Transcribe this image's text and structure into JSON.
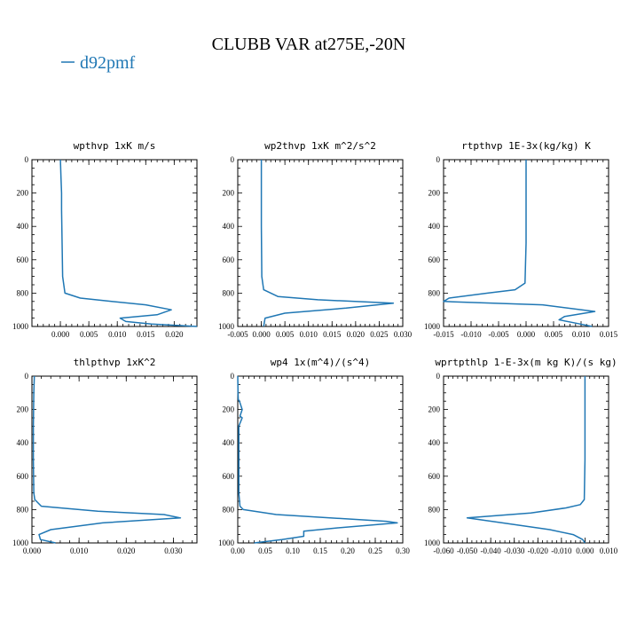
{
  "figure": {
    "title": "CLUBB VAR at275E,-20N",
    "legend": {
      "name": "d92pmf",
      "color": "#1f77b4",
      "placement": "top-left"
    }
  },
  "chart_data": [
    {
      "type": "line",
      "title": "wpthvp  1xK m/s",
      "xlim": [
        -0.005,
        0.024
      ],
      "xticks": [
        "0.000",
        "0.005",
        "0.010",
        "0.015",
        "0.020"
      ],
      "xtick_values": [
        0,
        0.005,
        0.01,
        0.015,
        0.02
      ],
      "ylim": [
        1000,
        0
      ],
      "yticks": [
        "0",
        "200",
        "400",
        "600",
        "800",
        "1000"
      ],
      "ytick_values": [
        0,
        200,
        400,
        600,
        800,
        1000
      ],
      "series": [
        {
          "color": "#1f77b4",
          "x": [
            0.0,
            0.0001,
            0.0002,
            0.0002,
            0.0003,
            0.0004,
            0.0008,
            0.0035,
            0.009,
            0.015,
            0.0195,
            0.017,
            0.0105,
            0.0115,
            0.016,
            0.024
          ],
          "y": [
            0,
            100,
            200,
            300,
            500,
            700,
            800,
            830,
            850,
            870,
            900,
            930,
            950,
            970,
            985,
            1000
          ]
        }
      ]
    },
    {
      "type": "line",
      "title": "wp2thvp  1xK m^2/s^2",
      "xlim": [
        -0.005,
        0.03
      ],
      "xticks": [
        "-0.005",
        "0.000",
        "0.005",
        "0.010",
        "0.015",
        "0.020",
        "0.025",
        "0.030"
      ],
      "xtick_values": [
        -0.005,
        0,
        0.005,
        0.01,
        0.015,
        0.02,
        0.025,
        0.03
      ],
      "ylim": [
        1000,
        0
      ],
      "yticks": [
        "0",
        "200",
        "400",
        "600",
        "800",
        "1000"
      ],
      "ytick_values": [
        0,
        200,
        400,
        600,
        800,
        1000
      ],
      "series": [
        {
          "color": "#1f77b4",
          "x": [
            0.0,
            0.0,
            0.0,
            0.0001,
            0.0005,
            0.0035,
            0.012,
            0.028,
            0.018,
            0.005,
            0.0008,
            0.0005
          ],
          "y": [
            0,
            200,
            400,
            700,
            780,
            820,
            840,
            860,
            890,
            920,
            950,
            1000
          ]
        }
      ]
    },
    {
      "type": "line",
      "title": "rtpthvp  1E-3x(kg/kg) K",
      "xlim": [
        -0.015,
        0.015
      ],
      "xticks": [
        "-0.015",
        "-0.010",
        "-0.005",
        "0.000",
        "0.005",
        "0.010",
        "0.015"
      ],
      "xtick_values": [
        -0.015,
        -0.01,
        -0.005,
        0,
        0.005,
        0.01,
        0.015
      ],
      "ylim": [
        1000,
        0
      ],
      "yticks": [
        "0",
        "200",
        "400",
        "600",
        "800",
        "1000"
      ],
      "ytick_values": [
        0,
        200,
        400,
        600,
        800,
        1000
      ],
      "series": [
        {
          "color": "#1f77b4",
          "x": [
            0.0,
            0.0,
            0.0,
            -0.0002,
            -0.002,
            -0.007,
            -0.014,
            -0.015,
            0.003,
            0.0125,
            0.007,
            0.006,
            0.009,
            0.012
          ],
          "y": [
            0,
            200,
            500,
            740,
            780,
            800,
            830,
            850,
            870,
            910,
            940,
            960,
            980,
            1000
          ]
        }
      ]
    },
    {
      "type": "line",
      "title": "thlpthvp  1xK^2",
      "xlim": [
        0,
        0.035
      ],
      "xticks": [
        "0.000",
        "0.010",
        "0.020",
        "0.030"
      ],
      "xtick_values": [
        0,
        0.01,
        0.02,
        0.03
      ],
      "ylim": [
        1000,
        0
      ],
      "yticks": [
        "0",
        "200",
        "400",
        "600",
        "800",
        "1000"
      ],
      "ytick_values": [
        0,
        200,
        400,
        600,
        800,
        1000
      ],
      "series": [
        {
          "color": "#1f77b4",
          "x": [
            0.0005,
            0.0004,
            0.0003,
            0.0003,
            0.0004,
            0.0006,
            0.002,
            0.014,
            0.028,
            0.0315,
            0.015,
            0.004,
            0.0015,
            0.0018,
            0.005
          ],
          "y": [
            0,
            100,
            300,
            500,
            700,
            740,
            780,
            810,
            830,
            850,
            880,
            920,
            950,
            980,
            1000
          ]
        }
      ]
    },
    {
      "type": "line",
      "title": "wp4  1x(m^4)/(s^4)",
      "xlim": [
        0,
        0.3
      ],
      "xticks": [
        "0.00",
        "0.05",
        "0.10",
        "0.15",
        "0.20",
        "0.25",
        "0.30"
      ],
      "xtick_values": [
        0,
        0.05,
        0.1,
        0.15,
        0.2,
        0.25,
        0.3
      ],
      "ylim": [
        1000,
        0
      ],
      "yticks": [
        "0",
        "200",
        "400",
        "600",
        "800",
        "1000"
      ],
      "ytick_values": [
        0,
        200,
        400,
        600,
        800,
        1000
      ],
      "series": [
        {
          "color": "#1f77b4",
          "x": [
            0.0,
            0.0005,
            0.001,
            0.003,
            0.008,
            0.004,
            0.008,
            0.002,
            0.002,
            0.004,
            0.01,
            0.07,
            0.27,
            0.29,
            0.18,
            0.12,
            0.12,
            0.08,
            0.03
          ],
          "y": [
            0,
            100,
            140,
            150,
            200,
            240,
            250,
            300,
            700,
            780,
            800,
            830,
            870,
            880,
            910,
            930,
            960,
            980,
            1000
          ]
        }
      ]
    },
    {
      "type": "line",
      "title": "wprtpthlp  1-E-3x(m kg K)/(s kg)",
      "xlim": [
        -0.06,
        0.01
      ],
      "xticks": [
        "-0.060",
        "-0.050",
        "-0.040",
        "-0.030",
        "-0.020",
        "-0.010",
        "0.000",
        "0.010"
      ],
      "xtick_values": [
        -0.06,
        -0.05,
        -0.04,
        -0.03,
        -0.02,
        -0.01,
        0,
        0.01
      ],
      "ylim": [
        1000,
        0
      ],
      "yticks": [
        "0",
        "200",
        "400",
        "600",
        "800",
        "1000"
      ],
      "ytick_values": [
        0,
        200,
        400,
        600,
        800,
        1000
      ],
      "series": [
        {
          "color": "#1f77b4",
          "x": [
            0.0,
            0.0,
            0.0,
            -0.0003,
            -0.002,
            -0.008,
            -0.023,
            -0.05,
            -0.035,
            -0.015,
            -0.005,
            -0.001,
            0.0
          ],
          "y": [
            0,
            200,
            500,
            740,
            770,
            790,
            820,
            850,
            880,
            920,
            950,
            980,
            1000
          ]
        }
      ]
    }
  ]
}
